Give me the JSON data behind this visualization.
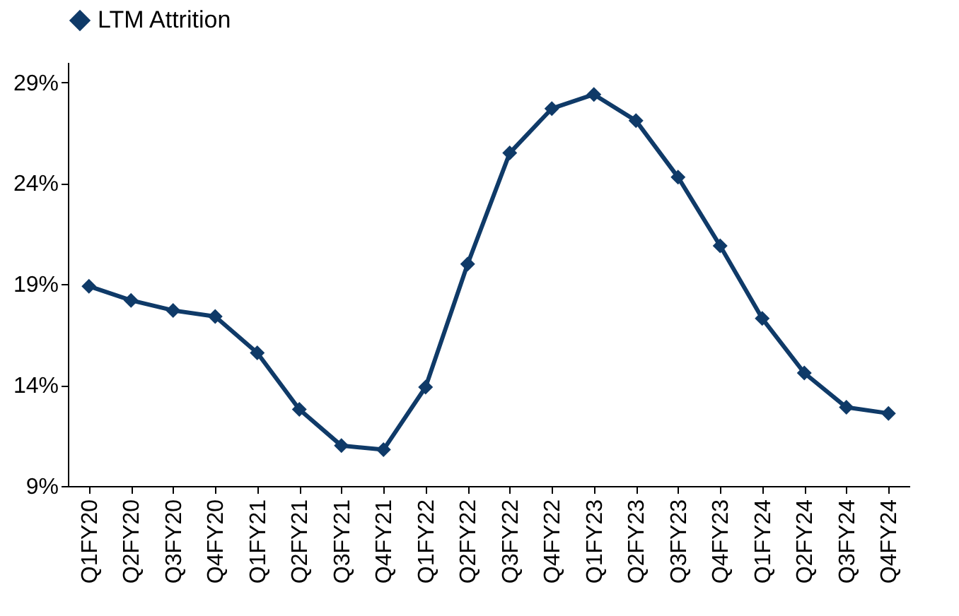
{
  "chart_data": {
    "type": "line",
    "categories": [
      "Q1FY20",
      "Q2FY20",
      "Q3FY20",
      "Q4FY20",
      "Q1FY21",
      "Q2FY21",
      "Q3FY21",
      "Q4FY21",
      "Q1FY22",
      "Q2FY22",
      "Q3FY22",
      "Q4FY22",
      "Q1FY23",
      "Q2FY23",
      "Q3FY23",
      "Q4FY23",
      "Q1FY24",
      "Q2FY24",
      "Q3FY24",
      "Q4FY24"
    ],
    "series": [
      {
        "name": "LTM Attrition",
        "color": "#0f3a68",
        "values": [
          18.9,
          18.2,
          17.7,
          17.4,
          15.6,
          12.8,
          11.0,
          10.8,
          13.9,
          20.0,
          25.5,
          27.7,
          28.4,
          27.1,
          24.3,
          20.9,
          17.3,
          14.6,
          12.9,
          12.6
        ]
      }
    ],
    "ylim": [
      9,
      30
    ],
    "yticks": [
      {
        "value": 9,
        "label": "9%"
      },
      {
        "value": 14,
        "label": "14%"
      },
      {
        "value": 19,
        "label": "19%"
      },
      {
        "value": 24,
        "label": "24%"
      },
      {
        "value": 29,
        "label": "29%"
      }
    ],
    "legend": "top",
    "grid": false,
    "marker": "diamond",
    "line_style": "solid"
  }
}
